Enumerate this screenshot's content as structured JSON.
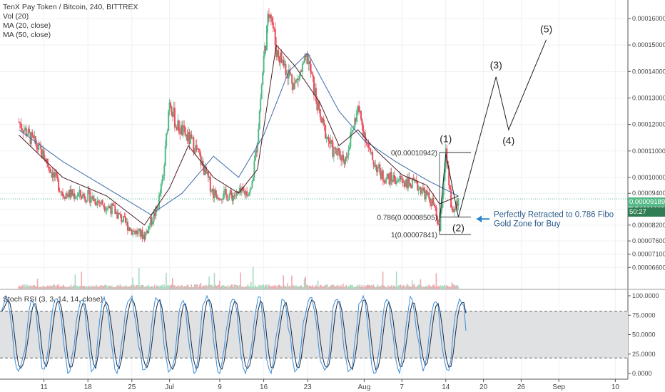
{
  "legend": {
    "title": "TenX Pay Token / Bitcoin, 240, BITTREX",
    "vol": "Vol (20)",
    "ma20": "MA (20, close)",
    "ma50": "MA (50, close)"
  },
  "rsi_legend": "Stoch RSI (3, 3, 14, 14, close)",
  "current_price": "0.00009189",
  "countdown": "50:27",
  "colors": {
    "up": "#53b987",
    "down": "#eb4d5c",
    "ma20": "#4a1f27",
    "ma50": "#3d6aa8",
    "rsi_k": "#2c5fa8",
    "rsi_d": "#1a2a44",
    "arrow": "#2c82c9",
    "price_tag": "#53b987",
    "countdown_tag": "#2f7d54"
  },
  "chart_data": {
    "type": "candlestick",
    "symbol": "TenX Pay Token / Bitcoin",
    "interval": "240",
    "exchange": "BITTREX",
    "price_axis": {
      "ylim": [
        5.8e-05,
        0.000167
      ],
      "ticks": [
        "0.00016000",
        "0.00015000",
        "0.00014000",
        "0.00013000",
        "0.00012000",
        "0.00011000",
        "0.00010000",
        "0.00009400",
        "0.00008800",
        "0.00008200",
        "0.00007600",
        "0.00007100",
        "0.00006600"
      ]
    },
    "x_ticks": [
      "11",
      "18",
      "25",
      "Jul",
      "9",
      "16",
      "23",
      "Aug",
      "7",
      "14",
      "20",
      "26",
      "Sep",
      "10"
    ],
    "price_path": [
      [
        "2018-06-07",
        0.000121
      ],
      [
        "2018-06-11",
        0.000108
      ],
      [
        "2018-06-14",
        9.4e-05
      ],
      [
        "2018-06-18",
        9.3e-05
      ],
      [
        "2018-06-22",
        8.8e-05
      ],
      [
        "2018-06-25",
        8e-05
      ],
      [
        "2018-06-27",
        7.8e-05
      ],
      [
        "2018-06-29",
        8.8e-05
      ],
      [
        "2018-06-30",
        0.0001
      ],
      [
        "2018-07-01",
        0.00013
      ],
      [
        "2018-07-02",
        0.00012
      ],
      [
        "2018-07-05",
        0.000112
      ],
      [
        "2018-07-08",
        9.4e-05
      ],
      [
        "2018-07-11",
        9.3e-05
      ],
      [
        "2018-07-14",
        9.5e-05
      ],
      [
        "2018-07-15",
        0.000115
      ],
      [
        "2018-07-16",
        0.000145
      ],
      [
        "2018-07-17",
        0.000165
      ],
      [
        "2018-07-18",
        0.000148
      ],
      [
        "2018-07-21",
        0.000135
      ],
      [
        "2018-07-23",
        0.000145
      ],
      [
        "2018-07-25",
        0.000122
      ],
      [
        "2018-07-27",
        0.00011
      ],
      [
        "2018-07-29",
        0.000107
      ],
      [
        "2018-07-31",
        0.000126
      ],
      [
        "2018-08-02",
        0.000108
      ],
      [
        "2018-08-04",
        0.0001
      ],
      [
        "2018-08-07",
        9.9e-05
      ],
      [
        "2018-08-10",
        9.6e-05
      ],
      [
        "2018-08-12",
        9e-05
      ],
      [
        "2018-08-13",
        8e-05
      ],
      [
        "2018-08-14",
        0.000109
      ],
      [
        "2018-08-15",
        8.6e-05
      ],
      [
        "2018-08-16",
        9.2e-05
      ]
    ],
    "ma20": [
      [
        "2018-06-07",
        0.000116
      ],
      [
        "2018-06-14",
        0.0001
      ],
      [
        "2018-06-21",
        9.3e-05
      ],
      [
        "2018-06-27",
        8.2e-05
      ],
      [
        "2018-07-01",
        9.6e-05
      ],
      [
        "2018-07-04",
        0.000112
      ],
      [
        "2018-07-08",
        0.0001
      ],
      [
        "2018-07-12",
        9.4e-05
      ],
      [
        "2018-07-15",
        0.000103
      ],
      [
        "2018-07-18",
        0.00015
      ],
      [
        "2018-07-21",
        0.000142
      ],
      [
        "2018-07-25",
        0.000128
      ],
      [
        "2018-07-28",
        0.000112
      ],
      [
        "2018-07-31",
        0.000118
      ],
      [
        "2018-08-03",
        0.00011
      ],
      [
        "2018-08-07",
        0.000101
      ],
      [
        "2018-08-11",
        9.7e-05
      ],
      [
        "2018-08-13",
        9e-05
      ],
      [
        "2018-08-16",
        9.3e-05
      ]
    ],
    "ma50": [
      [
        "2018-06-07",
        0.000118
      ],
      [
        "2018-06-14",
        0.000106
      ],
      [
        "2018-06-21",
        9.6e-05
      ],
      [
        "2018-06-28",
        8.6e-05
      ],
      [
        "2018-07-03",
        9.4e-05
      ],
      [
        "2018-07-08",
        0.000108
      ],
      [
        "2018-07-12",
        0.0001
      ],
      [
        "2018-07-16",
        0.000116
      ],
      [
        "2018-07-20",
        0.00014
      ],
      [
        "2018-07-23",
        0.000147
      ],
      [
        "2018-07-28",
        0.000125
      ],
      [
        "2018-08-01",
        0.000114
      ],
      [
        "2018-08-06",
        0.000106
      ],
      [
        "2018-08-11",
        9.9e-05
      ],
      [
        "2018-08-16",
        9.3e-05
      ]
    ],
    "fibonacci": [
      {
        "label": "0(0.00010942)",
        "level": 0.00010942
      },
      {
        "label": "0.786(0.00008505)",
        "level": 8.505e-05
      },
      {
        "label": "1(0.00007841)",
        "level": 7.841e-05
      }
    ],
    "elliott_waves": [
      {
        "label": "(1)",
        "date": "2018-08-14",
        "value": 0.000109
      },
      {
        "label": "(2)",
        "date": "2018-08-16",
        "value": 8.5e-05
      },
      {
        "label": "(3)",
        "date": "2018-08-22",
        "value": 0.000138
      },
      {
        "label": "(4)",
        "date": "2018-08-24",
        "value": 0.000118
      },
      {
        "label": "(5)",
        "date": "2018-08-30",
        "value": 0.000152
      }
    ],
    "annotation": [
      "Perfectly Retracted to 0.786 Fibo",
      "Gold Zone for Buy"
    ],
    "rsi_axis": {
      "ylim": [
        0,
        100
      ],
      "ticks": [
        "100.0000",
        "75.0000",
        "50.0000",
        "25.0000",
        "0.0000"
      ],
      "bands": [
        20,
        80
      ]
    }
  }
}
